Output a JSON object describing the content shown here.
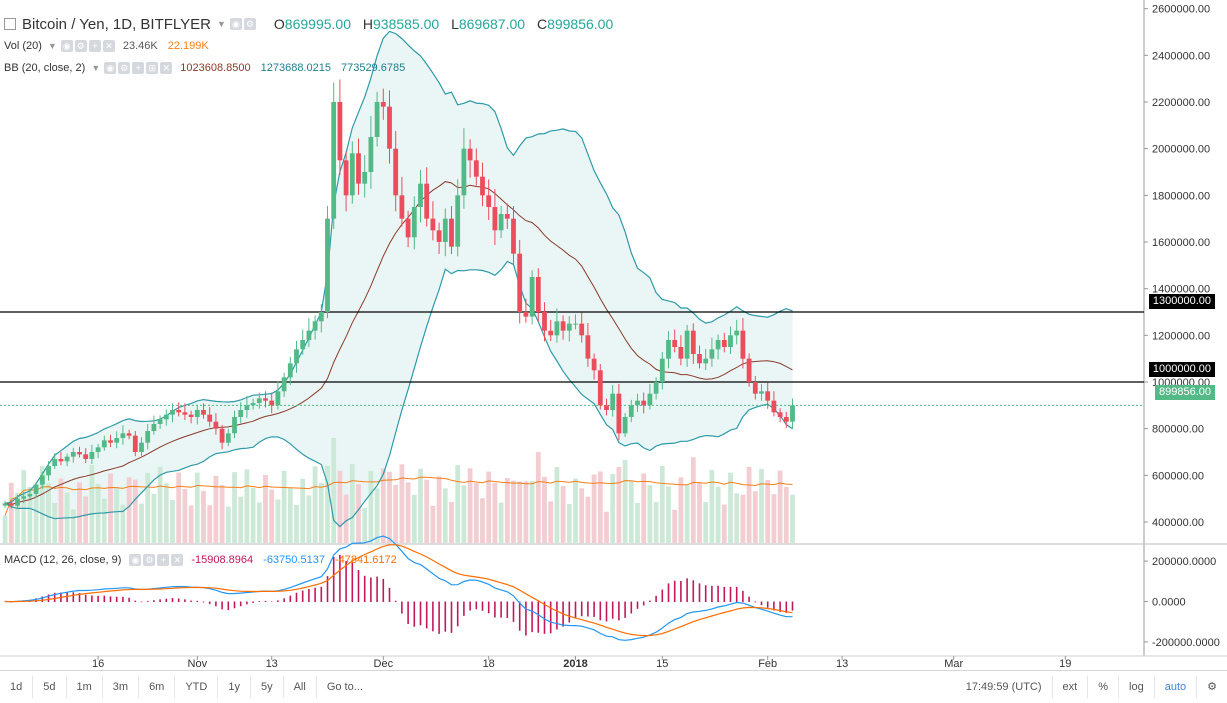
{
  "header": {
    "symbol": "Bitcoin / Yen, 1D, BITFLYER",
    "open_label": "O",
    "open": "869995.00",
    "high_label": "H",
    "high": "938585.00",
    "low_label": "L",
    "low": "869687.00",
    "close_label": "C",
    "close": "899856.00"
  },
  "indicators": {
    "vol": {
      "name": "Vol (20)",
      "value1": "23.46K",
      "value2": "22.199K"
    },
    "bb": {
      "name": "BB (20, close, 2)",
      "basis": "1023608.8500",
      "upper": "1273688.0215",
      "lower": "773529.6785"
    },
    "macd": {
      "name": "MACD (12, 26, close, 9)",
      "hist": "-15908.8964",
      "macd": "-63750.5137",
      "signal": "-47841.6172"
    }
  },
  "price_labels": {
    "line_1300": "1300000.00",
    "line_1000": "1000000.00",
    "last": "899856.00"
  },
  "toolbar": {
    "ranges": [
      "1d",
      "5d",
      "1m",
      "3m",
      "6m",
      "YTD",
      "1y",
      "5y",
      "All"
    ],
    "goto": "Go to...",
    "time": "17:49:59 (UTC)",
    "ext": "ext",
    "percent": "%",
    "log": "log",
    "auto": "auto"
  },
  "colors": {
    "up": "#53b987",
    "down": "#eb4d5c",
    "bb": "#2e9aa8",
    "basis": "#8b3a2a",
    "vol_ma": "#f57f17",
    "macd": "#2196f3",
    "signal": "#ff6d00",
    "hist": "#c2185b"
  },
  "chart_data": {
    "type": "candlestick",
    "title": "Bitcoin / Yen, 1D, BITFLYER",
    "y_axis": {
      "ticks": [
        400000,
        600000,
        800000,
        1000000,
        1200000,
        1400000,
        1600000,
        1800000,
        2000000,
        2200000,
        2400000,
        2600000
      ],
      "tick_labels": [
        "400000.00",
        "600000.00",
        "800000.00",
        "1000000.00",
        "1200000.00",
        "1400000.00",
        "1600000.00",
        "1800000.00",
        "2000000.00",
        "2200000.00",
        "2400000.00",
        "2600000.00"
      ],
      "range": [
        310000,
        2620000
      ]
    },
    "x_axis": {
      "tick_labels": [
        "16",
        "Nov",
        "13",
        "Dec",
        "18",
        "2018",
        "15",
        "Feb",
        "13",
        "Mar",
        "19"
      ],
      "tick_days": [
        15,
        31,
        43,
        61,
        78,
        92,
        106,
        123,
        135,
        153,
        171
      ]
    },
    "horizontal_lines": [
      1300000,
      1000000
    ],
    "last_price": 899856,
    "closes": [
      480000,
      470000,
      500000,
      510000,
      520000,
      560000,
      600000,
      640000,
      670000,
      660000,
      680000,
      700000,
      690000,
      670000,
      700000,
      720000,
      750000,
      740000,
      760000,
      780000,
      770000,
      700000,
      740000,
      790000,
      820000,
      840000,
      860000,
      880000,
      870000,
      860000,
      850000,
      880000,
      860000,
      830000,
      800000,
      740000,
      780000,
      850000,
      880000,
      900000,
      910000,
      930000,
      920000,
      900000,
      960000,
      1020000,
      1080000,
      1140000,
      1180000,
      1220000,
      1260000,
      1300000,
      1700000,
      2200000,
      1950000,
      1800000,
      1980000,
      1850000,
      1900000,
      2050000,
      2200000,
      2180000,
      2000000,
      1800000,
      1700000,
      1620000,
      1750000,
      1850000,
      1700000,
      1650000,
      1600000,
      1700000,
      1580000,
      1800000,
      2000000,
      1950000,
      1880000,
      1800000,
      1750000,
      1650000,
      1720000,
      1700000,
      1550000,
      1300000,
      1280000,
      1450000,
      1300000,
      1220000,
      1200000,
      1260000,
      1220000,
      1250000,
      1250000,
      1200000,
      1100000,
      1050000,
      900000,
      880000,
      950000,
      780000,
      850000,
      900000,
      920000,
      900000,
      950000,
      1000000,
      1100000,
      1180000,
      1150000,
      1100000,
      1220000,
      1120000,
      1080000,
      1100000,
      1140000,
      1180000,
      1150000,
      1200000,
      1220000,
      1100000,
      1000000,
      950000,
      960000,
      920000,
      870000,
      850000,
      830000,
      900000
    ],
    "volume_note": "volume bars with 20-period moving average (orange)",
    "bollinger": {
      "period": 20,
      "stddev": 2
    },
    "macd_axis": {
      "tick_labels": [
        "200000.0000",
        "0.0000",
        "-200000.0000"
      ],
      "ticks": [
        200000,
        0,
        -200000
      ]
    }
  }
}
